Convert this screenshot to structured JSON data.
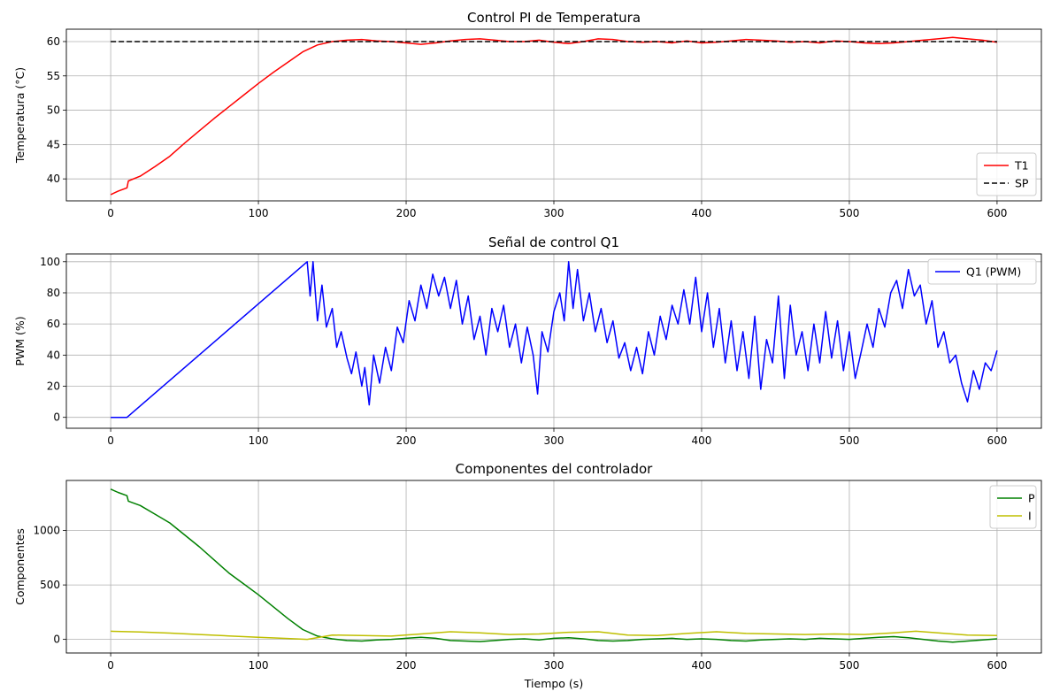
{
  "chart_data": [
    {
      "type": "line",
      "title": "Control PI de Temperatura",
      "xlabel": "",
      "ylabel": "Temperatura (°C)",
      "xlim": [
        -30,
        630
      ],
      "ylim": [
        36.8,
        61.8
      ],
      "xticks": [
        0,
        100,
        200,
        300,
        400,
        500,
        600
      ],
      "yticks": [
        40,
        45,
        50,
        55,
        60
      ],
      "grid": true,
      "legend_position": "lower-right",
      "series": [
        {
          "name": "T1",
          "color": "#ff0000",
          "style": "solid",
          "x": [
            0,
            5,
            11,
            12,
            20,
            30,
            40,
            50,
            60,
            70,
            80,
            90,
            100,
            110,
            120,
            130,
            140,
            150,
            160,
            170,
            180,
            190,
            200,
            210,
            220,
            230,
            240,
            250,
            260,
            270,
            280,
            290,
            300,
            310,
            320,
            330,
            340,
            350,
            360,
            370,
            380,
            390,
            400,
            410,
            420,
            430,
            440,
            450,
            460,
            470,
            480,
            490,
            500,
            510,
            520,
            530,
            540,
            550,
            560,
            570,
            580,
            590,
            600
          ],
          "y": [
            37.7,
            38.2,
            38.7,
            39.7,
            40.4,
            41.8,
            43.3,
            45.2,
            47.0,
            48.8,
            50.5,
            52.2,
            53.9,
            55.5,
            57.0,
            58.5,
            59.5,
            60.0,
            60.2,
            60.3,
            60.1,
            60.0,
            59.8,
            59.6,
            59.8,
            60.1,
            60.3,
            60.4,
            60.2,
            60.0,
            60.0,
            60.2,
            59.9,
            59.7,
            60.0,
            60.4,
            60.3,
            60.0,
            59.9,
            60.0,
            59.8,
            60.1,
            59.8,
            59.9,
            60.1,
            60.3,
            60.2,
            60.1,
            59.9,
            60.0,
            59.8,
            60.1,
            60.0,
            59.8,
            59.7,
            59.8,
            60.0,
            60.2,
            60.4,
            60.6,
            60.4,
            60.2,
            59.9
          ]
        },
        {
          "name": "SP",
          "color": "#000000",
          "style": "dashed",
          "x": [
            0,
            600
          ],
          "y": [
            60,
            60
          ]
        }
      ]
    },
    {
      "type": "line",
      "title": "Señal de control Q1",
      "xlabel": "",
      "ylabel": "PWM (%)",
      "xlim": [
        -30,
        630
      ],
      "ylim": [
        -7,
        105
      ],
      "xticks": [
        0,
        100,
        200,
        300,
        400,
        500,
        600
      ],
      "yticks": [
        0,
        20,
        40,
        60,
        80,
        100
      ],
      "grid": true,
      "legend_position": "upper-right",
      "series": [
        {
          "name": "Q1 (PWM)",
          "color": "#0000ff",
          "style": "solid",
          "x": [
            0,
            10,
            11,
            133,
            135,
            137,
            140,
            143,
            146,
            150,
            153,
            156,
            160,
            163,
            166,
            170,
            172,
            175,
            178,
            182,
            186,
            190,
            194,
            198,
            202,
            206,
            210,
            214,
            218,
            222,
            226,
            230,
            234,
            238,
            242,
            246,
            250,
            254,
            258,
            262,
            266,
            270,
            274,
            278,
            282,
            286,
            289,
            292,
            296,
            300,
            304,
            307,
            310,
            313,
            316,
            320,
            324,
            328,
            332,
            336,
            340,
            344,
            348,
            352,
            356,
            360,
            364,
            368,
            372,
            376,
            380,
            384,
            388,
            392,
            396,
            400,
            404,
            408,
            412,
            416,
            420,
            424,
            428,
            432,
            436,
            440,
            444,
            448,
            452,
            456,
            460,
            464,
            468,
            472,
            476,
            480,
            484,
            488,
            492,
            496,
            500,
            504,
            508,
            512,
            516,
            520,
            524,
            528,
            532,
            536,
            540,
            544,
            548,
            552,
            556,
            560,
            564,
            568,
            572,
            576,
            580,
            584,
            588,
            592,
            596,
            600
          ],
          "y": [
            0,
            0,
            0,
            100,
            78,
            100,
            62,
            85,
            58,
            70,
            45,
            55,
            38,
            28,
            42,
            20,
            32,
            8,
            40,
            22,
            45,
            30,
            58,
            48,
            75,
            62,
            85,
            70,
            92,
            78,
            90,
            70,
            88,
            60,
            78,
            50,
            65,
            40,
            70,
            55,
            72,
            45,
            60,
            35,
            58,
            40,
            15,
            55,
            42,
            68,
            80,
            62,
            100,
            70,
            95,
            62,
            80,
            55,
            70,
            48,
            62,
            38,
            48,
            30,
            45,
            28,
            55,
            40,
            65,
            50,
            72,
            60,
            82,
            60,
            90,
            55,
            80,
            45,
            70,
            35,
            62,
            30,
            55,
            25,
            65,
            18,
            50,
            35,
            78,
            25,
            72,
            40,
            55,
            30,
            60,
            35,
            68,
            38,
            62,
            30,
            55,
            25,
            42,
            60,
            45,
            70,
            58,
            80,
            88,
            70,
            95,
            78,
            85,
            60,
            75,
            45,
            55,
            35,
            40,
            22,
            10,
            30,
            18,
            35,
            30,
            43
          ]
        },
        {
          "name": "",
          "color": "#0000ff",
          "style": "solid",
          "x": [],
          "y": []
        }
      ]
    },
    {
      "type": "line",
      "title": "Componentes del controlador",
      "xlabel": "Tiempo (s)",
      "ylabel": "Componentes",
      "xlim": [
        -30,
        630
      ],
      "ylim": [
        -125,
        1460
      ],
      "xticks": [
        0,
        100,
        200,
        300,
        400,
        500,
        600
      ],
      "yticks": [
        0,
        500,
        1000
      ],
      "grid": true,
      "legend_position": "upper-right",
      "series": [
        {
          "name": "P",
          "color": "#008000",
          "style": "solid",
          "x": [
            0,
            5,
            11,
            12,
            20,
            30,
            40,
            50,
            60,
            70,
            80,
            90,
            100,
            110,
            120,
            130,
            140,
            150,
            160,
            170,
            180,
            190,
            200,
            210,
            220,
            230,
            240,
            250,
            260,
            270,
            280,
            290,
            300,
            310,
            320,
            330,
            340,
            350,
            360,
            370,
            380,
            390,
            400,
            410,
            420,
            430,
            440,
            450,
            460,
            470,
            480,
            490,
            500,
            510,
            520,
            530,
            540,
            550,
            560,
            570,
            580,
            590,
            600
          ],
          "y": [
            1380,
            1350,
            1320,
            1270,
            1230,
            1150,
            1070,
            960,
            850,
            730,
            610,
            510,
            410,
            300,
            190,
            90,
            30,
            5,
            -10,
            -15,
            -5,
            0,
            10,
            20,
            10,
            -10,
            -15,
            -20,
            -10,
            0,
            5,
            -5,
            10,
            15,
            5,
            -10,
            -15,
            -10,
            0,
            5,
            10,
            0,
            5,
            0,
            -10,
            -15,
            -5,
            0,
            5,
            0,
            10,
            5,
            0,
            10,
            20,
            25,
            15,
            0,
            -15,
            -25,
            -15,
            -5,
            5
          ]
        },
        {
          "name": "I",
          "color": "#bfbf00",
          "style": "solid",
          "x": [
            0,
            20,
            40,
            60,
            80,
            100,
            120,
            133,
            150,
            170,
            190,
            210,
            230,
            250,
            270,
            290,
            310,
            330,
            350,
            370,
            390,
            410,
            430,
            450,
            470,
            490,
            510,
            530,
            545,
            560,
            580,
            600
          ],
          "y": [
            75,
            68,
            58,
            45,
            32,
            20,
            8,
            0,
            40,
            35,
            30,
            50,
            70,
            60,
            45,
            50,
            65,
            70,
            40,
            35,
            55,
            70,
            55,
            50,
            45,
            50,
            45,
            60,
            75,
            60,
            40,
            35
          ]
        }
      ]
    }
  ]
}
